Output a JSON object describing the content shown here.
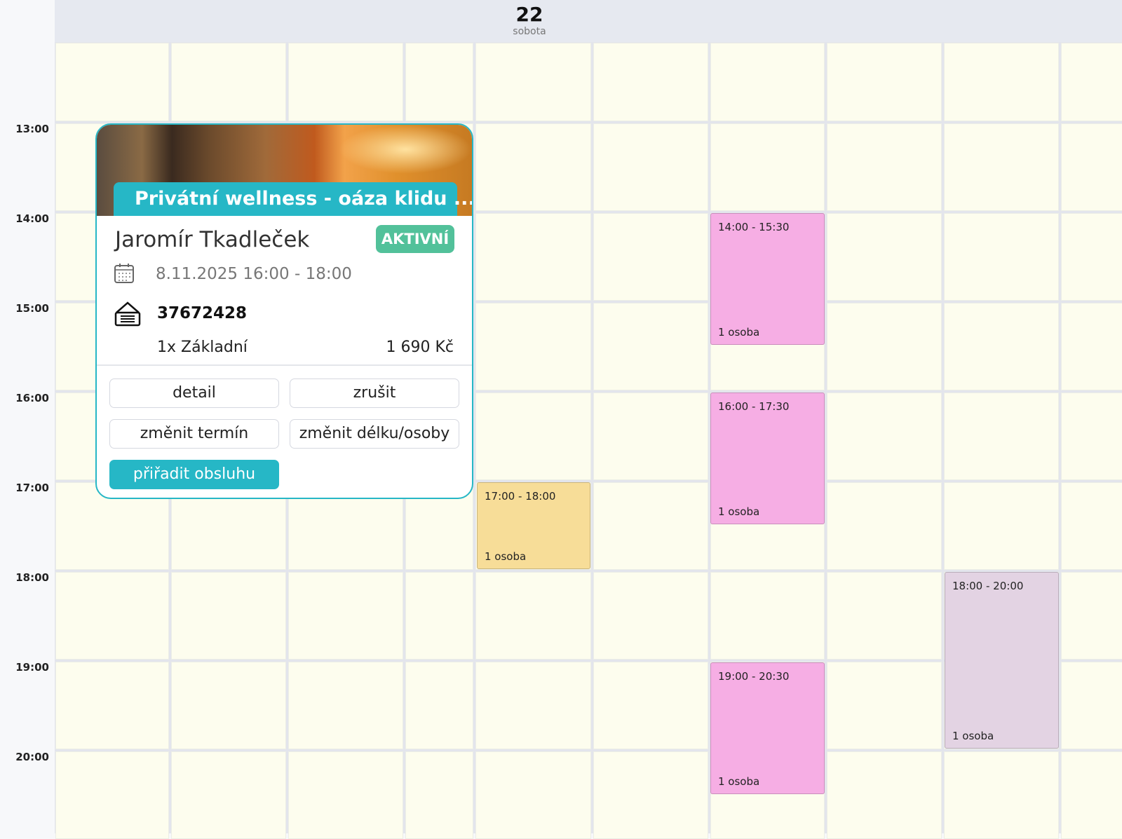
{
  "header": {
    "day_number": "22",
    "day_name": "sobota"
  },
  "time_labels": [
    "13:00",
    "14:00",
    "15:00",
    "16:00",
    "17:00",
    "18:00",
    "19:00",
    "20:00"
  ],
  "events": [
    {
      "time": "17:00 - 18:00",
      "persons": "1 osoba",
      "color": "#f7dd98"
    },
    {
      "time": "14:00 - 15:30",
      "persons": "1 osoba",
      "color": "#f6aee4"
    },
    {
      "time": "16:00 - 17:30",
      "persons": "1 osoba",
      "color": "#f6aee4"
    },
    {
      "time": "19:00 - 20:30",
      "persons": "1 osoba",
      "color": "#f6aee4"
    },
    {
      "time": "18:00 - 20:00",
      "persons": "1 osoba",
      "color": "#e3d3e3"
    }
  ],
  "popup": {
    "title": "Privátní wellness - oáza klidu ...",
    "customer": "Jaromír Tkadleček",
    "status": "AKTIVNÍ",
    "datetime": "8.11.2025 16:00 - 18:00",
    "order_id": "37672428",
    "item": "1x Základní",
    "price": "1 690 Kč",
    "buttons": {
      "detail": "detail",
      "cancel": "zrušit",
      "change_date": "změnit termín",
      "change_length": "změnit délku/osoby",
      "assign_staff": "přiřadit obsluhu"
    },
    "accent": "#26b7c6"
  }
}
